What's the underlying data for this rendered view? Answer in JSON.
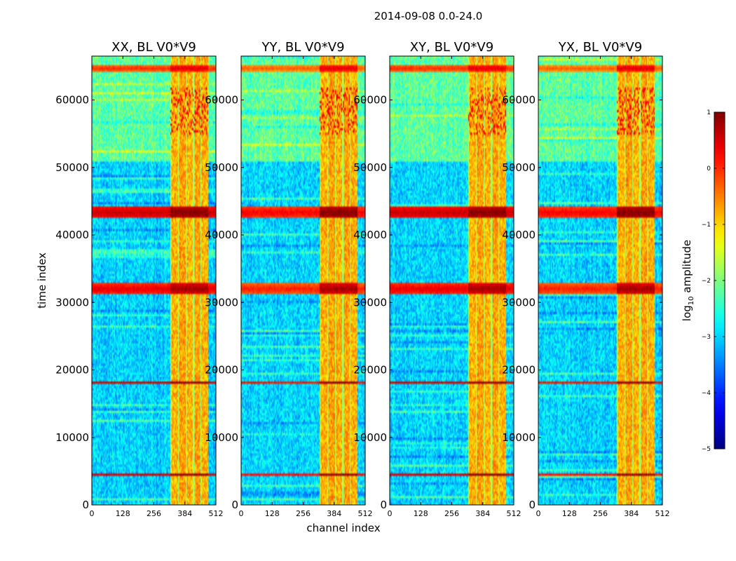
{
  "chart_data": {
    "type": "heatmap",
    "title": "2014-09-08 0.0-24.0",
    "xlabel": "channel index",
    "ylabel": "time index",
    "xlim": [
      0,
      512
    ],
    "ylim": [
      0,
      66500
    ],
    "x_ticks": [
      0,
      128,
      256,
      384,
      512
    ],
    "x_tick_labels": [
      "0",
      "128",
      "256",
      "384",
      "512"
    ],
    "y_ticks": [
      0,
      10000,
      20000,
      30000,
      40000,
      50000,
      60000
    ],
    "y_tick_labels": [
      "0",
      "10000",
      "20000",
      "30000",
      "40000",
      "50000",
      "60000"
    ],
    "colorscale": "jet",
    "panels": [
      {
        "title": "XX, BL V0*V9",
        "polarization": "XX",
        "baseline": "V0*V9"
      },
      {
        "title": "YY, BL V0*V9",
        "polarization": "YY",
        "baseline": "V0*V9"
      },
      {
        "title": "XY, BL V0*V9",
        "polarization": "XY",
        "baseline": "V0*V9"
      },
      {
        "title": "YX, BL V0*V9",
        "polarization": "YX",
        "baseline": "V0*V9"
      }
    ],
    "colorbar": {
      "label": "log10 amplitude",
      "label_text": "log",
      "label_sub": "10",
      "label_rest": " amplitude",
      "range": [
        -5,
        1
      ],
      "ticks": [
        1,
        0,
        -1,
        -2,
        -3,
        -4,
        -5
      ],
      "tick_labels": [
        "1",
        "0",
        "−1",
        "−2",
        "−3",
        "−4",
        "−5"
      ]
    },
    "features": {
      "background_level": -3,
      "upper_band_level": -2.2,
      "upper_band_start": 51000,
      "bright_channel_range": [
        325,
        480
      ],
      "bright_channel_level": -0.8,
      "rfi_time_bands": [
        {
          "center": 43300,
          "width": 1700,
          "level": 0.6
        },
        {
          "center": 32000,
          "width": 1600,
          "level": 0.4
        },
        {
          "center": 18100,
          "width": 500,
          "level": 0.5
        },
        {
          "center": 4500,
          "width": 500,
          "level": 0.5
        },
        {
          "center": 64700,
          "width": 1000,
          "level": 0.0
        }
      ]
    }
  }
}
